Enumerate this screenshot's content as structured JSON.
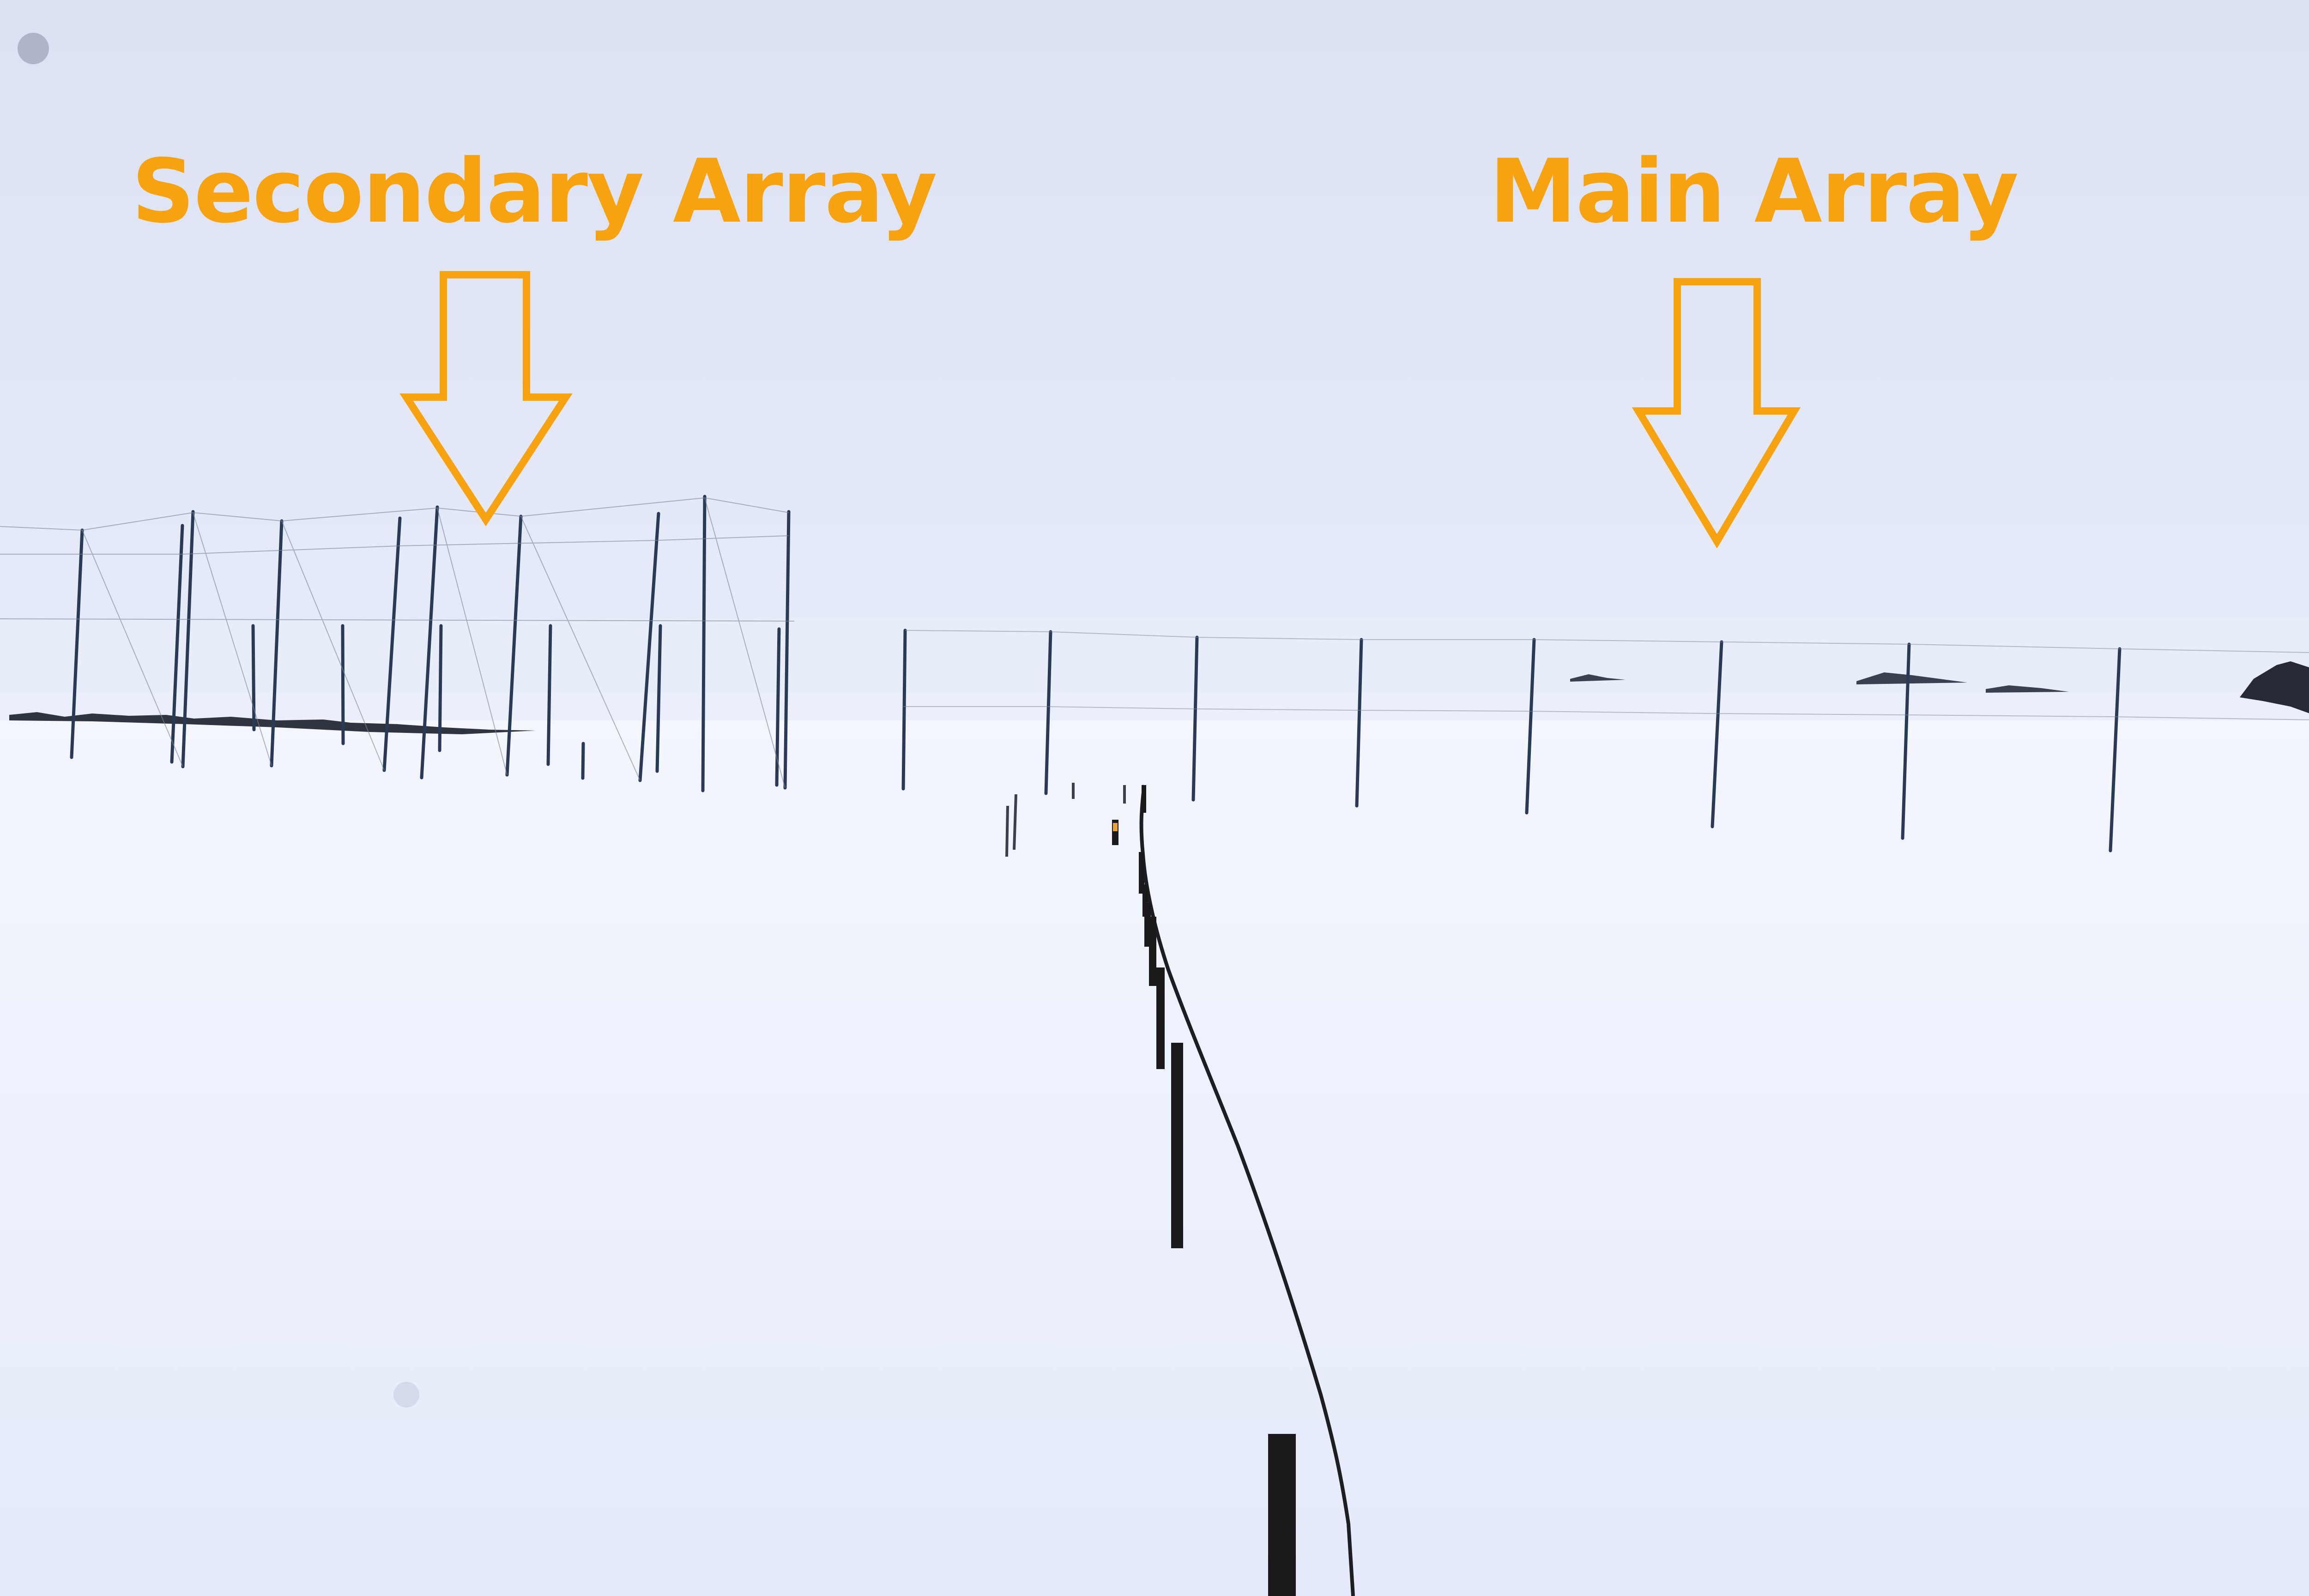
{
  "annotations": {
    "secondary_label": "Secondary Array",
    "main_label": "Main Array",
    "label_color": "#f7a20f",
    "arrow_color": "#f7a20f"
  },
  "scene": {
    "sky_color": "#dde4f5",
    "snow_color": "#eef2fc",
    "pole_color": "#2a3244",
    "post_color": "#1b1b1b"
  }
}
